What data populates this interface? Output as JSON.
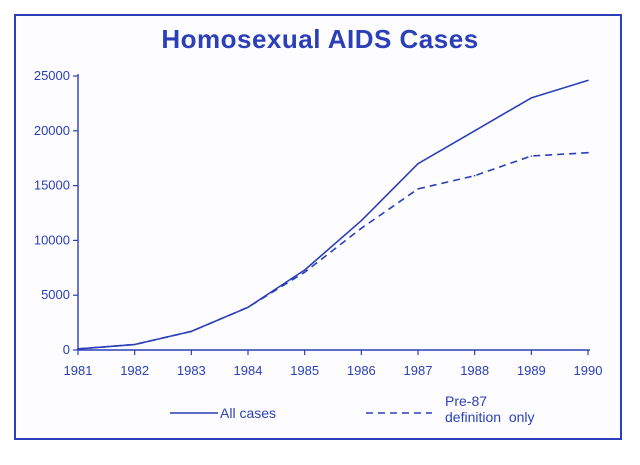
{
  "chart_data": {
    "type": "line",
    "title": "Homosexual AIDS Cases",
    "xlabel": "",
    "ylabel": "",
    "x": [
      "1981",
      "1982",
      "1983",
      "1984",
      "1985",
      "1986",
      "1987",
      "1988",
      "1989",
      "1990"
    ],
    "ylim": [
      0,
      25000
    ],
    "yticks": [
      "0",
      "5000",
      "10000",
      "15000",
      "20000",
      "25000"
    ],
    "grid": false,
    "legend_position": "bottom",
    "series": [
      {
        "name": "All cases",
        "style": "solid",
        "values": [
          100,
          500,
          1700,
          3900,
          7300,
          11800,
          17000,
          20000,
          23000,
          24600
        ]
      },
      {
        "name": "Pre-87 definition only",
        "legend_lines": [
          "Pre-87",
          "definition  only"
        ],
        "style": "dashed",
        "values": [
          100,
          500,
          1700,
          3900,
          7100,
          11100,
          14700,
          15900,
          17700,
          18000
        ]
      }
    ],
    "colors": {
      "line": "#2a3fb8",
      "text": "#2a3fb8",
      "background": "#fdfdff"
    }
  }
}
